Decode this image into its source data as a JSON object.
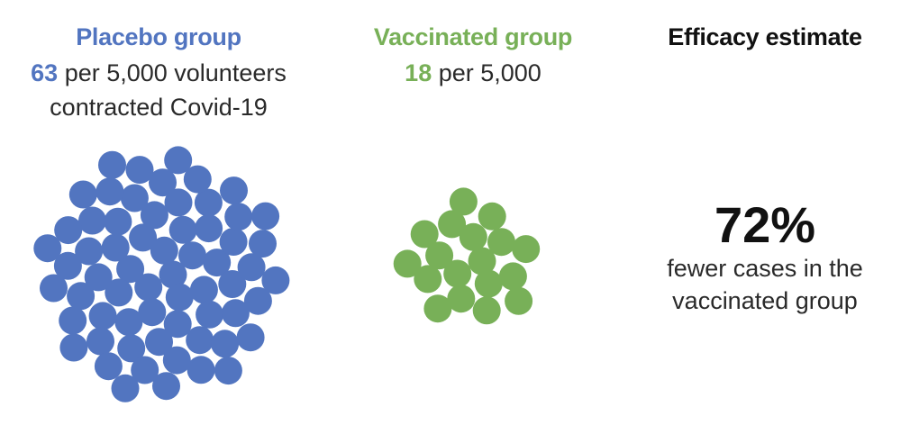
{
  "colors": {
    "placebo": "#5275c0",
    "vaccinated": "#78b058",
    "text": "#222222"
  },
  "placebo": {
    "title": "Placebo group",
    "count": "63",
    "line1_rest": " per 5,000 volunteers",
    "line2": "contracted Covid-19",
    "cases_per_5000": 63
  },
  "vaccinated": {
    "title": "Vaccinated group",
    "count": "18",
    "line1_rest": " per 5,000",
    "cases_per_5000": 18
  },
  "efficacy": {
    "title": "Efficacy estimate",
    "value": "72%",
    "caption_line1": "fewer cases in the",
    "caption_line2": "vaccinated group"
  }
}
